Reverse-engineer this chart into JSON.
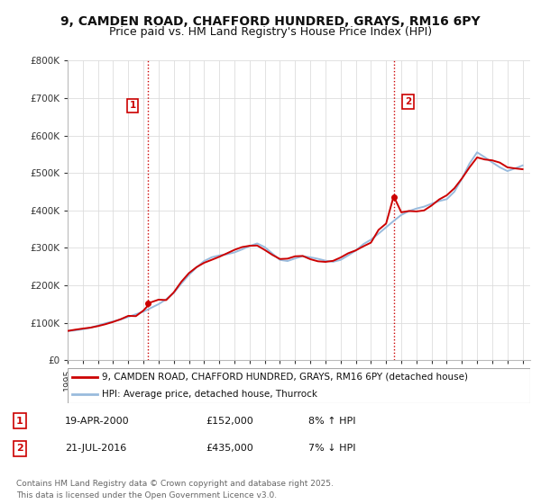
{
  "title_line1": "9, CAMDEN ROAD, CHAFFORD HUNDRED, GRAYS, RM16 6PY",
  "title_line2": "Price paid vs. HM Land Registry's House Price Index (HPI)",
  "background_color": "#ffffff",
  "plot_bg_color": "#ffffff",
  "grid_color": "#dddddd",
  "line1_color": "#cc0000",
  "line2_color": "#99bbdd",
  "sale1_date_x": 2000.29,
  "sale1_price": 152000,
  "sale2_date_x": 2016.55,
  "sale2_price": 435000,
  "vline_color": "#cc0000",
  "legend_line1": "9, CAMDEN ROAD, CHAFFORD HUNDRED, GRAYS, RM16 6PY (detached house)",
  "legend_line2": "HPI: Average price, detached house, Thurrock",
  "table_row1": [
    "1",
    "19-APR-2000",
    "£152,000",
    "8% ↑ HPI"
  ],
  "table_row2": [
    "2",
    "21-JUL-2016",
    "£435,000",
    "7% ↓ HPI"
  ],
  "footnote": "Contains HM Land Registry data © Crown copyright and database right 2025.\nThis data is licensed under the Open Government Licence v3.0.",
  "ylim": [
    0,
    800000
  ],
  "yticks": [
    0,
    100000,
    200000,
    300000,
    400000,
    500000,
    600000,
    700000,
    800000
  ],
  "ytick_labels": [
    "£0",
    "£100K",
    "£200K",
    "£300K",
    "£400K",
    "£500K",
    "£600K",
    "£700K",
    "£800K"
  ],
  "xmin": 1995.0,
  "xmax": 2025.5,
  "title_fontsize": 10,
  "subtitle_fontsize": 9,
  "tick_fontsize": 7.5,
  "legend_fontsize": 7.5,
  "table_fontsize": 8,
  "footnote_fontsize": 6.5
}
